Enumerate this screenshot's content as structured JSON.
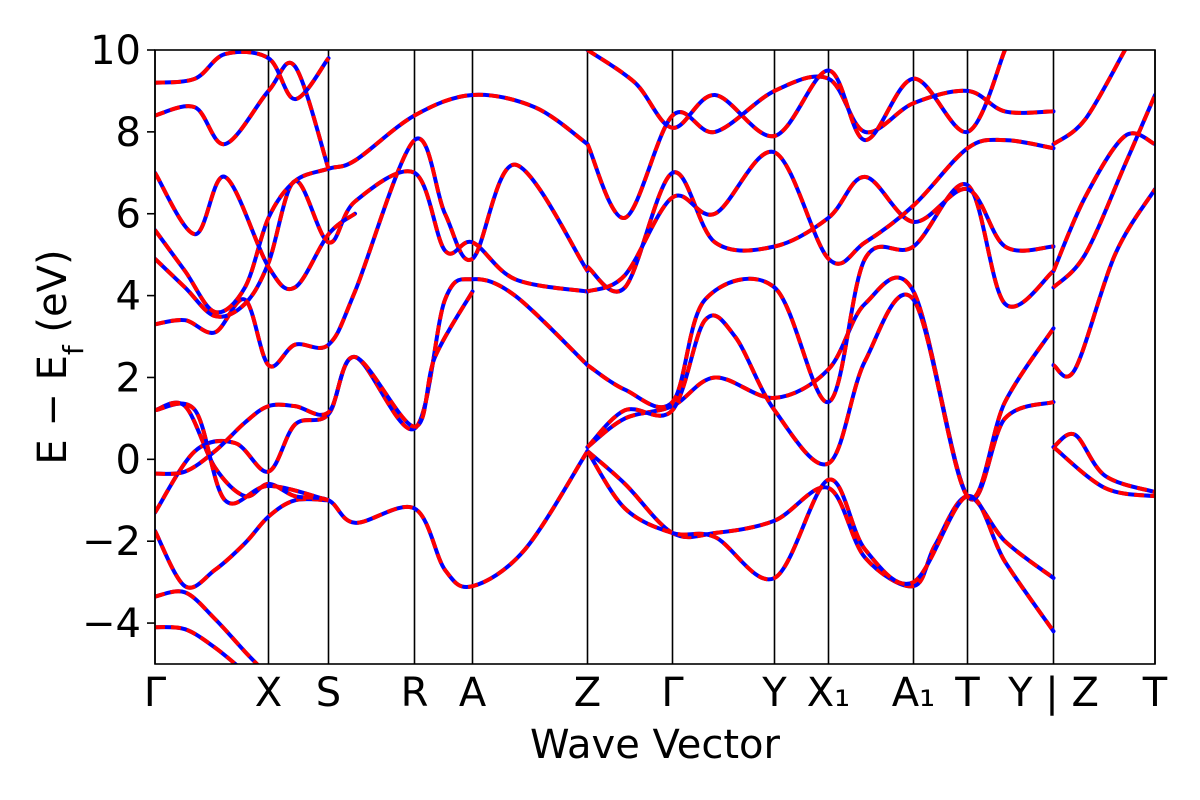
{
  "chart_data": {
    "type": "line",
    "title": "",
    "xlabel": "Wave Vector",
    "ylabel": {
      "main": "E − E",
      "sub": "f",
      "unit": " (eV)"
    },
    "ylim": [
      -5,
      10
    ],
    "yticks": [
      -4,
      -2,
      0,
      2,
      4,
      6,
      8,
      10
    ],
    "ytick_labels": [
      "−4",
      "−2",
      "0",
      "2",
      "4",
      "6",
      "8",
      "10"
    ],
    "xlim": [
      0,
      1
    ],
    "kpoints": [
      {
        "label": "Γ",
        "x": 0.0
      },
      {
        "label": "X",
        "x": 0.1135
      },
      {
        "label": "S",
        "x": 0.1735
      },
      {
        "label": "R",
        "x": 0.2595
      },
      {
        "label": "A",
        "x": 0.3175
      },
      {
        "label": "Z",
        "x": 0.4325
      },
      {
        "label": "Γ",
        "x": 0.5175
      },
      {
        "label": "Y",
        "x": 0.6195
      },
      {
        "label": "X₁",
        "x": 0.6735
      },
      {
        "label": "A₁",
        "x": 0.7585
      },
      {
        "label": "T",
        "x": 0.8125
      },
      {
        "label": "Y | Z",
        "x": 0.8985
      },
      {
        "label": "T",
        "x": 1.0
      }
    ],
    "series_colors": {
      "line_a": "#ff0000",
      "line_b": "#0000ff"
    },
    "bands": [
      [
        [
          0.0,
          -4.1
        ],
        [
          0.03,
          -4.15
        ],
        [
          0.06,
          -4.6
        ],
        [
          0.09,
          -5.2
        ]
      ],
      [
        [
          0.0,
          -3.35
        ],
        [
          0.03,
          -3.25
        ],
        [
          0.06,
          -3.9
        ],
        [
          0.09,
          -4.7
        ],
        [
          0.11,
          -5.2
        ]
      ],
      [
        [
          0.0,
          -1.75
        ],
        [
          0.03,
          -3.1
        ],
        [
          0.06,
          -2.7
        ],
        [
          0.09,
          -2.05
        ],
        [
          0.1135,
          -1.4
        ],
        [
          0.14,
          -1.0
        ],
        [
          0.1735,
          -1.0
        ]
      ],
      [
        [
          0.0,
          -1.3
        ],
        [
          0.04,
          0.2
        ],
        [
          0.08,
          0.4
        ],
        [
          0.1135,
          -0.3
        ],
        [
          0.14,
          0.85
        ],
        [
          0.1735,
          1.1
        ],
        [
          0.2,
          2.5
        ],
        [
          0.2595,
          0.75
        ],
        [
          0.29,
          3.9
        ],
        [
          0.3175,
          4.4
        ],
        [
          0.36,
          4.0
        ],
        [
          0.4325,
          2.3
        ]
      ],
      [
        [
          0.0,
          -0.35
        ],
        [
          0.03,
          -0.3
        ],
        [
          0.06,
          0.2
        ],
        [
          0.09,
          0.9
        ],
        [
          0.1135,
          1.3
        ],
        [
          0.14,
          1.3
        ],
        [
          0.1735,
          1.15
        ],
        [
          0.2,
          2.5
        ],
        [
          0.2595,
          0.8
        ],
        [
          0.28,
          2.5
        ],
        [
          0.3175,
          4.1
        ]
      ],
      [
        [
          0.0,
          1.2
        ],
        [
          0.03,
          1.3
        ],
        [
          0.06,
          -0.2
        ],
        [
          0.09,
          -0.9
        ],
        [
          0.1135,
          -0.6
        ],
        [
          0.14,
          -0.9
        ],
        [
          0.1735,
          -1.0
        ],
        [
          0.2,
          -1.55
        ],
        [
          0.2595,
          -1.2
        ],
        [
          0.29,
          -2.7
        ],
        [
          0.3175,
          -3.1
        ],
        [
          0.37,
          -2.2
        ],
        [
          0.4325,
          0.2
        ]
      ],
      [
        [
          0.0,
          1.2
        ],
        [
          0.04,
          1.2
        ],
        [
          0.07,
          -1.0
        ],
        [
          0.1135,
          -0.65
        ],
        [
          0.1735,
          -1.0
        ]
      ],
      [
        [
          0.0,
          3.3
        ],
        [
          0.03,
          3.4
        ],
        [
          0.06,
          3.1
        ],
        [
          0.09,
          3.9
        ],
        [
          0.1135,
          2.3
        ],
        [
          0.14,
          2.8
        ],
        [
          0.1735,
          2.8
        ],
        [
          0.2,
          4.1
        ],
        [
          0.2595,
          7.8
        ],
        [
          0.29,
          6.0
        ],
        [
          0.3175,
          4.9
        ],
        [
          0.36,
          7.2
        ],
        [
          0.4325,
          4.6
        ]
      ],
      [
        [
          0.0,
          4.9
        ],
        [
          0.03,
          4.2
        ],
        [
          0.06,
          3.5
        ],
        [
          0.09,
          3.8
        ],
        [
          0.1135,
          4.8
        ],
        [
          0.14,
          6.8
        ],
        [
          0.1735,
          5.3
        ],
        [
          0.2,
          6.3
        ],
        [
          0.2595,
          7.0
        ],
        [
          0.29,
          5.1
        ],
        [
          0.3175,
          5.3
        ],
        [
          0.36,
          4.4
        ],
        [
          0.4325,
          4.1
        ]
      ],
      [
        [
          0.0,
          5.6
        ],
        [
          0.03,
          4.6
        ],
        [
          0.06,
          3.6
        ],
        [
          0.09,
          4.2
        ],
        [
          0.1135,
          5.9
        ],
        [
          0.14,
          6.8
        ],
        [
          0.1735,
          7.1
        ],
        [
          0.2,
          7.3
        ],
        [
          0.2595,
          8.4
        ],
        [
          0.3175,
          8.9
        ],
        [
          0.38,
          8.6
        ],
        [
          0.4325,
          7.7
        ]
      ],
      [
        [
          0.0,
          7.0
        ],
        [
          0.04,
          5.5
        ],
        [
          0.07,
          6.9
        ],
        [
          0.1135,
          4.7
        ],
        [
          0.14,
          4.2
        ],
        [
          0.1735,
          5.5
        ],
        [
          0.2,
          6.0
        ]
      ],
      [
        [
          0.0,
          8.4
        ],
        [
          0.04,
          8.6
        ],
        [
          0.07,
          7.7
        ],
        [
          0.1135,
          9.0
        ],
        [
          0.14,
          9.6
        ],
        [
          0.1735,
          7.1
        ]
      ],
      [
        [
          0.0,
          9.2
        ],
        [
          0.04,
          9.3
        ],
        [
          0.07,
          9.9
        ],
        [
          0.1135,
          9.8
        ],
        [
          0.14,
          8.8
        ],
        [
          0.1735,
          9.8
        ]
      ],
      [
        [
          0.4325,
          0.2
        ],
        [
          0.47,
          -0.6
        ],
        [
          0.5175,
          -1.8
        ],
        [
          0.56,
          -1.8
        ],
        [
          0.6195,
          -1.5
        ],
        [
          0.6735,
          -0.7
        ],
        [
          0.71,
          -2.4
        ],
        [
          0.7585,
          -3.1
        ],
        [
          0.78,
          -2.1
        ],
        [
          0.8125,
          -0.9
        ],
        [
          0.85,
          -2.0
        ],
        [
          0.8985,
          -2.9
        ]
      ],
      [
        [
          0.4325,
          0.2
        ],
        [
          0.47,
          -1.2
        ],
        [
          0.5175,
          -1.8
        ],
        [
          0.56,
          -1.9
        ],
        [
          0.6195,
          -2.9
        ],
        [
          0.6735,
          -0.5
        ],
        [
          0.71,
          -2.2
        ],
        [
          0.7585,
          -3.0
        ],
        [
          0.8125,
          -0.9
        ],
        [
          0.85,
          -2.5
        ],
        [
          0.8985,
          -4.2
        ]
      ],
      [
        [
          0.4325,
          0.3
        ],
        [
          0.47,
          1.0
        ],
        [
          0.5175,
          1.3
        ],
        [
          0.56,
          2.0
        ],
        [
          0.6195,
          1.5
        ],
        [
          0.6735,
          2.2
        ],
        [
          0.71,
          3.8
        ],
        [
          0.7585,
          4.1
        ],
        [
          0.8125,
          -0.9
        ],
        [
          0.85,
          1.0
        ],
        [
          0.8985,
          1.4
        ]
      ],
      [
        [
          0.4325,
          0.3
        ],
        [
          0.47,
          1.2
        ],
        [
          0.5175,
          1.2
        ],
        [
          0.55,
          3.4
        ],
        [
          0.58,
          3.0
        ],
        [
          0.6195,
          1.2
        ],
        [
          0.6735,
          -0.1
        ],
        [
          0.71,
          2.4
        ],
        [
          0.7585,
          3.9
        ],
        [
          0.8125,
          -0.9
        ],
        [
          0.85,
          1.4
        ],
        [
          0.8985,
          3.2
        ]
      ],
      [
        [
          0.4325,
          2.3
        ],
        [
          0.47,
          1.7
        ],
        [
          0.5175,
          1.4
        ],
        [
          0.55,
          3.9
        ],
        [
          0.6195,
          4.2
        ],
        [
          0.6735,
          1.4
        ],
        [
          0.71,
          4.9
        ],
        [
          0.7585,
          5.2
        ],
        [
          0.8125,
          6.7
        ],
        [
          0.85,
          3.8
        ],
        [
          0.8985,
          4.6
        ]
      ],
      [
        [
          0.4325,
          4.7
        ],
        [
          0.47,
          4.2
        ],
        [
          0.5175,
          7.0
        ],
        [
          0.56,
          5.3
        ],
        [
          0.6195,
          5.2
        ],
        [
          0.6735,
          5.9
        ],
        [
          0.71,
          6.9
        ],
        [
          0.7585,
          5.8
        ],
        [
          0.8125,
          6.6
        ],
        [
          0.85,
          5.2
        ],
        [
          0.8985,
          5.2
        ]
      ],
      [
        [
          0.4325,
          4.1
        ],
        [
          0.47,
          4.5
        ],
        [
          0.5175,
          6.4
        ],
        [
          0.56,
          6.0
        ],
        [
          0.6195,
          7.5
        ],
        [
          0.6735,
          4.9
        ],
        [
          0.71,
          5.3
        ],
        [
          0.7585,
          6.2
        ],
        [
          0.8125,
          7.6
        ],
        [
          0.85,
          7.8
        ],
        [
          0.8985,
          7.6
        ]
      ],
      [
        [
          0.4325,
          7.7
        ],
        [
          0.47,
          5.9
        ],
        [
          0.5175,
          8.4
        ],
        [
          0.56,
          8.0
        ],
        [
          0.6195,
          9.0
        ],
        [
          0.6735,
          9.3
        ],
        [
          0.71,
          8.0
        ],
        [
          0.7585,
          8.7
        ],
        [
          0.8125,
          9.0
        ],
        [
          0.85,
          8.5
        ],
        [
          0.8985,
          8.5
        ]
      ],
      [
        [
          0.4325,
          10.0
        ],
        [
          0.48,
          9.2
        ],
        [
          0.5175,
          8.1
        ],
        [
          0.56,
          8.9
        ],
        [
          0.6195,
          7.9
        ],
        [
          0.6735,
          9.5
        ],
        [
          0.71,
          7.8
        ],
        [
          0.7585,
          9.3
        ],
        [
          0.8125,
          8.0
        ],
        [
          0.85,
          10.0
        ]
      ],
      [
        [
          0.8985,
          0.3
        ],
        [
          0.92,
          0.6
        ],
        [
          0.95,
          -0.4
        ],
        [
          1.0,
          -0.8
        ]
      ],
      [
        [
          0.8985,
          0.3
        ],
        [
          0.95,
          -0.7
        ],
        [
          1.0,
          -0.9
        ]
      ],
      [
        [
          0.8985,
          2.3
        ],
        [
          0.92,
          2.2
        ],
        [
          0.96,
          5.0
        ],
        [
          1.0,
          6.6
        ]
      ],
      [
        [
          0.8985,
          4.2
        ],
        [
          0.93,
          5.0
        ],
        [
          0.97,
          7.2
        ],
        [
          1.0,
          8.9
        ]
      ],
      [
        [
          0.8985,
          4.6
        ],
        [
          0.93,
          6.4
        ],
        [
          0.97,
          7.9
        ],
        [
          1.0,
          7.7
        ]
      ],
      [
        [
          0.8985,
          7.7
        ],
        [
          0.93,
          8.3
        ],
        [
          0.97,
          10.0
        ]
      ]
    ]
  }
}
